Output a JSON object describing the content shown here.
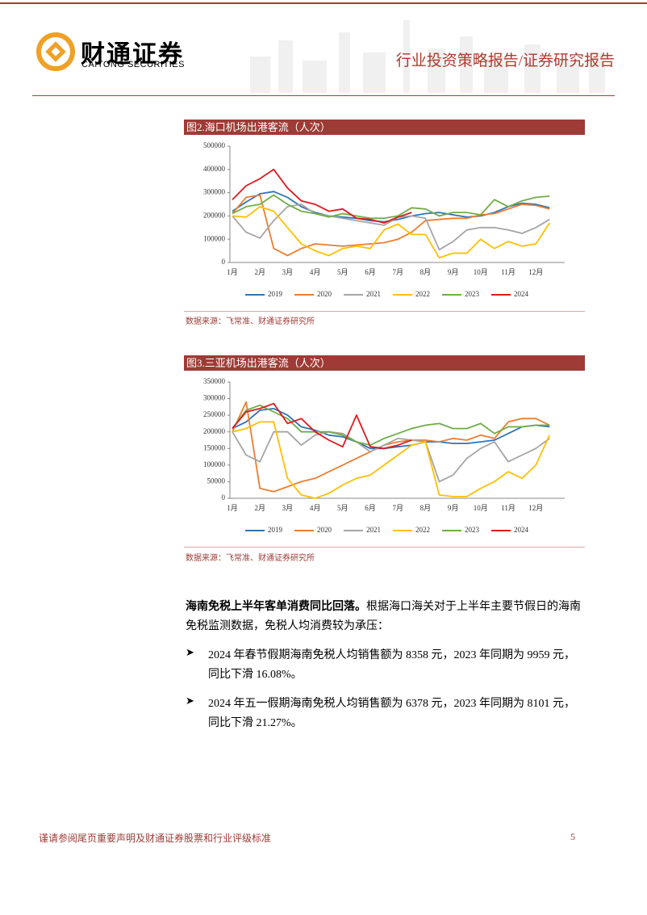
{
  "header": {
    "company_cn": "财通证券",
    "company_en": "CAITONG SECURITIES",
    "report_type": "行业投资策略报告/证券研究报告"
  },
  "figures": [
    {
      "title": "图2.海口机场出港客流（人次）",
      "source": "数据来源：飞常准、财通证券研究所",
      "chart_data": {
        "type": "line",
        "categories": [
          "1月",
          null,
          "2月",
          null,
          "3月",
          null,
          "4月",
          null,
          "5月",
          null,
          "6月",
          null,
          "7月",
          null,
          "8月",
          null,
          "9月",
          null,
          "10月",
          null,
          "11月",
          null,
          "12月",
          null
        ],
        "ylim": [
          0,
          500000
        ],
        "yticks": [
          0,
          100000,
          200000,
          300000,
          400000,
          500000
        ],
        "legend": "bottom",
        "series": [
          {
            "name": "2019",
            "color": "#2e75b6",
            "values": [
              220000,
              260000,
              295000,
              305000,
              280000,
              240000,
              215000,
              200000,
              195000,
              190000,
              180000,
              175000,
              185000,
              200000,
              210000,
              215000,
              205000,
              195000,
              200000,
              215000,
              240000,
              255000,
              250000,
              235000
            ]
          },
          {
            "name": "2020",
            "color": "#ed7d31",
            "values": [
              210000,
              280000,
              290000,
              60000,
              30000,
              60000,
              80000,
              75000,
              70000,
              75000,
              80000,
              85000,
              100000,
              130000,
              180000,
              185000,
              190000,
              190000,
              205000,
              210000,
              230000,
              250000,
              245000,
              230000
            ]
          },
          {
            "name": "2021",
            "color": "#a5a5a5",
            "values": [
              200000,
              130000,
              105000,
              180000,
              240000,
              250000,
              210000,
              200000,
              190000,
              180000,
              170000,
              160000,
              195000,
              200000,
              190000,
              55000,
              90000,
              140000,
              150000,
              150000,
              140000,
              125000,
              150000,
              185000
            ]
          },
          {
            "name": "2022",
            "color": "#ffc000",
            "values": [
              200000,
              195000,
              240000,
              220000,
              150000,
              80000,
              50000,
              30000,
              60000,
              70000,
              60000,
              140000,
              165000,
              120000,
              120000,
              20000,
              40000,
              40000,
              100000,
              60000,
              90000,
              70000,
              80000,
              170000
            ]
          },
          {
            "name": "2023",
            "color": "#70ad47",
            "values": [
              210000,
              240000,
              250000,
              290000,
              250000,
              220000,
              210000,
              195000,
              210000,
              200000,
              190000,
              190000,
              200000,
              235000,
              230000,
              200000,
              215000,
              215000,
              205000,
              270000,
              240000,
              265000,
              280000,
              285000
            ]
          },
          {
            "name": "2024",
            "color": "#e0191f",
            "values": [
              270000,
              330000,
              360000,
              400000,
              320000,
              265000,
              250000,
              220000,
              230000,
              190000,
              185000,
              170000,
              195000,
              215000,
              null,
              null,
              null,
              null,
              null,
              null,
              null,
              null,
              null,
              null
            ]
          }
        ]
      }
    },
    {
      "title": "图3.三亚机场出港客流（人次）",
      "source": "数据来源：飞常准、财通证券研究所",
      "chart_data": {
        "type": "line",
        "categories": [
          "1月",
          null,
          "2月",
          null,
          "3月",
          null,
          "4月",
          null,
          "5月",
          null,
          "6月",
          null,
          "7月",
          null,
          "8月",
          null,
          "9月",
          null,
          "10月",
          null,
          "11月",
          null,
          "12月",
          null
        ],
        "ylim": [
          0,
          350000
        ],
        "yticks": [
          0,
          50000,
          100000,
          150000,
          200000,
          250000,
          300000,
          350000
        ],
        "legend": "bottom",
        "series": [
          {
            "name": "2019",
            "color": "#2e75b6",
            "values": [
              210000,
              230000,
              265000,
              270000,
              250000,
              215000,
              205000,
              190000,
              185000,
              170000,
              150000,
              150000,
              155000,
              160000,
              170000,
              170000,
              165000,
              165000,
              170000,
              175000,
              195000,
              215000,
              220000,
              215000
            ]
          },
          {
            "name": "2020",
            "color": "#ed7d31",
            "values": [
              200000,
              290000,
              30000,
              20000,
              35000,
              50000,
              60000,
              80000,
              100000,
              120000,
              140000,
              160000,
              170000,
              175000,
              175000,
              170000,
              180000,
              175000,
              190000,
              180000,
              230000,
              240000,
              240000,
              220000
            ]
          },
          {
            "name": "2021",
            "color": "#a5a5a5",
            "values": [
              200000,
              130000,
              110000,
              200000,
              200000,
              160000,
              190000,
              200000,
              195000,
              170000,
              140000,
              160000,
              180000,
              175000,
              170000,
              50000,
              70000,
              120000,
              150000,
              170000,
              110000,
              130000,
              150000,
              180000
            ]
          },
          {
            "name": "2022",
            "color": "#ffc000",
            "values": [
              200000,
              210000,
              230000,
              230000,
              60000,
              10000,
              0,
              15000,
              40000,
              60000,
              70000,
              100000,
              130000,
              160000,
              170000,
              10000,
              5000,
              5000,
              30000,
              50000,
              80000,
              60000,
              100000,
              190000
            ]
          },
          {
            "name": "2023",
            "color": "#70ad47",
            "values": [
              210000,
              265000,
              280000,
              260000,
              240000,
              200000,
              200000,
              200000,
              190000,
              170000,
              160000,
              180000,
              195000,
              210000,
              220000,
              225000,
              210000,
              210000,
              225000,
              195000,
              215000,
              215000,
              220000,
              220000
            ]
          },
          {
            "name": "2024",
            "color": "#e0191f",
            "values": [
              210000,
              260000,
              270000,
              285000,
              225000,
              240000,
              200000,
              175000,
              155000,
              250000,
              155000,
              150000,
              160000,
              175000,
              null,
              null,
              null,
              null,
              null,
              null,
              null,
              null,
              null,
              null
            ]
          }
        ]
      }
    }
  ],
  "body": {
    "heading": "海南免税上半年客单消费同比回落。",
    "intro": "根据海口海关对于上半年主要节假日的海南免税监测数据，免税人均消费较为承压：",
    "bullets": [
      "2024 年春节假期海南免税人均销售额为 8358 元，2023 年同期为 9959 元，同比下滑 16.08%。",
      "2024 年五一假期海南免税人均销售额为 6378 元，2023 年同期为 8101 元，同比下滑 21.27%。"
    ]
  },
  "footer": {
    "disclaimer": "谨请参阅尾页重要声明及财通证券股票和行业评级标准",
    "page": 5
  }
}
